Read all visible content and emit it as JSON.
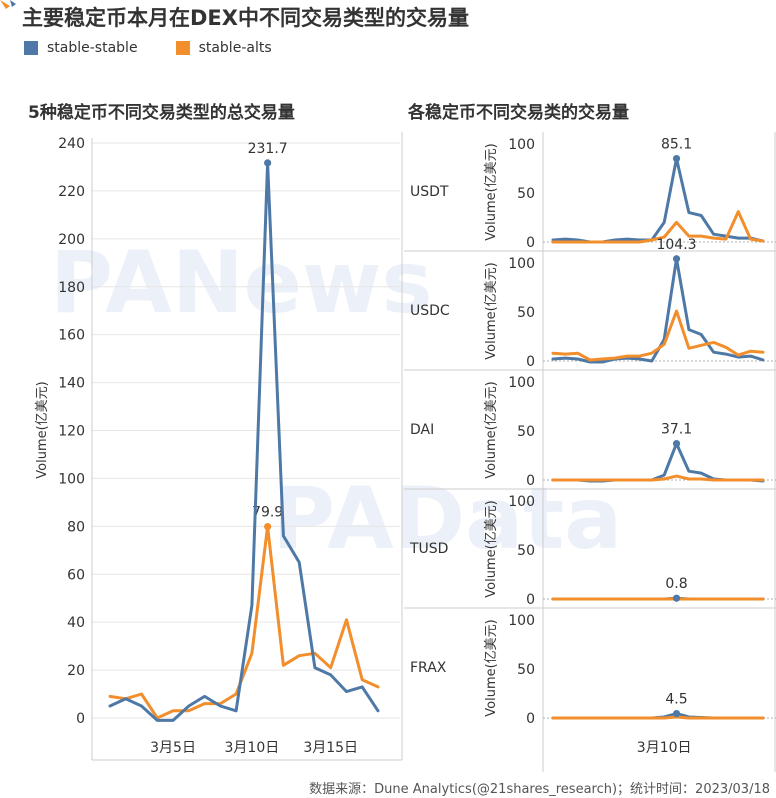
{
  "title": "主要稳定币本月在DEX中不同交易类型的交易量",
  "colors": {
    "stable_stable": "#4e79a7",
    "stable_alts": "#f28e2b",
    "grid": "#e6e6e6",
    "axis": "#cccccc",
    "text": "#333333",
    "watermark": "#e9eef7"
  },
  "legend": [
    {
      "label": "stable-stable",
      "color": "#4e79a7"
    },
    {
      "label": "stable-alts",
      "color": "#f28e2b"
    }
  ],
  "watermarks": [
    "PANews",
    "PAData"
  ],
  "footer": "数据来源：Dune Analytics(@21shares_research)；统计时间：2023/03/18",
  "chart_data": [
    {
      "type": "line",
      "title": "5种稳定币不同交易类型的总交易量",
      "ylabel": "Volume(亿美元)",
      "xlabel": "",
      "ylim": [
        0,
        240
      ],
      "yticks": [
        0,
        20,
        40,
        60,
        80,
        100,
        120,
        140,
        160,
        180,
        200,
        220,
        240
      ],
      "x": [
        1,
        2,
        3,
        4,
        5,
        6,
        7,
        8,
        9,
        10,
        11,
        12,
        13,
        14,
        15,
        16,
        17,
        18
      ],
      "xticks": [
        {
          "x": 5,
          "label": "3月5日"
        },
        {
          "x": 10,
          "label": "3月10日"
        },
        {
          "x": 15,
          "label": "3月15日"
        }
      ],
      "grid": "horizontal",
      "series": [
        {
          "name": "stable-stable",
          "values": [
            5,
            8,
            5,
            -1,
            -1,
            5,
            9,
            5,
            3,
            47,
            231.7,
            76,
            65,
            21,
            18,
            11,
            13,
            3
          ],
          "peak_label": "231.7",
          "peak_index": 10
        },
        {
          "name": "stable-alts",
          "values": [
            9,
            8,
            10,
            0,
            3,
            3,
            6,
            6,
            10,
            27,
            79.9,
            22,
            26,
            27,
            21,
            41,
            16,
            13
          ],
          "peak_label": "79.9",
          "peak_index": 10
        }
      ]
    },
    {
      "type": "line",
      "title": "各稳定币不同交易类的交易量",
      "ylabel": "Volume(亿美元)",
      "ylim": [
        0,
        100
      ],
      "yticks": [
        0,
        50,
        100
      ],
      "x": [
        1,
        2,
        3,
        4,
        5,
        6,
        7,
        8,
        9,
        10,
        11,
        12,
        13,
        14,
        15,
        16,
        17,
        18
      ],
      "xticks": [
        {
          "x": 10,
          "label": "3月10日"
        }
      ],
      "panels": [
        {
          "label": "USDT",
          "series": [
            {
              "name": "stable-stable",
              "values": [
                2,
                3,
                2,
                0,
                0,
                2,
                3,
                2,
                2,
                20,
                85.1,
                30,
                27,
                8,
                6,
                4,
                4,
                1
              ],
              "peak_label": "85.1",
              "peak_index": 10
            },
            {
              "name": "stable-alts",
              "values": [
                0,
                0,
                0,
                0,
                0,
                0,
                0,
                0,
                2,
                5,
                20,
                6,
                6,
                4,
                3,
                31,
                3,
                1
              ]
            }
          ]
        },
        {
          "label": "USDC",
          "series": [
            {
              "name": "stable-stable",
              "values": [
                2,
                3,
                2,
                -1,
                -1,
                2,
                3,
                2,
                0,
                22,
                104.3,
                32,
                27,
                9,
                7,
                4,
                5,
                1
              ],
              "peak_label": "104.3",
              "peak_index": 10
            },
            {
              "name": "stable-alts",
              "values": [
                8,
                7,
                8,
                1,
                2,
                3,
                5,
                5,
                8,
                17,
                51,
                13,
                16,
                19,
                14,
                6,
                10,
                9
              ]
            }
          ]
        },
        {
          "label": "DAI",
          "series": [
            {
              "name": "stable-stable",
              "values": [
                0,
                0,
                0,
                -1,
                -1,
                0,
                0,
                0,
                0,
                5,
                37.1,
                9,
                7,
                1,
                0,
                0,
                0,
                -1
              ],
              "peak_label": "37.1",
              "peak_index": 10
            },
            {
              "name": "stable-alts",
              "values": [
                0,
                0,
                0,
                0,
                0,
                0,
                0,
                0,
                0,
                1,
                4,
                1,
                1,
                0,
                0,
                0,
                0,
                0
              ]
            }
          ]
        },
        {
          "label": "TUSD",
          "series": [
            {
              "name": "stable-stable",
              "values": [
                0,
                0,
                0,
                0,
                0,
                0,
                0,
                0,
                0,
                0,
                0.8,
                0,
                0,
                0,
                0,
                0,
                0,
                0
              ],
              "peak_label": "0.8",
              "peak_index": 10
            },
            {
              "name": "stable-alts",
              "values": [
                0,
                0,
                0,
                0,
                0,
                0,
                0,
                0,
                0,
                0,
                0,
                0,
                0,
                0,
                0,
                0,
                0,
                0
              ]
            }
          ]
        },
        {
          "label": "FRAX",
          "series": [
            {
              "name": "stable-stable",
              "values": [
                0,
                0,
                0,
                0,
                0,
                0,
                0,
                0,
                0,
                1,
                4.5,
                1,
                0.5,
                0,
                0,
                0,
                0,
                0
              ],
              "peak_label": "4.5",
              "peak_index": 10
            },
            {
              "name": "stable-alts",
              "values": [
                0,
                0,
                0,
                0,
                0,
                0,
                0,
                0,
                0,
                0,
                1,
                0,
                0,
                0,
                0,
                0,
                0,
                0
              ]
            }
          ]
        }
      ]
    }
  ]
}
